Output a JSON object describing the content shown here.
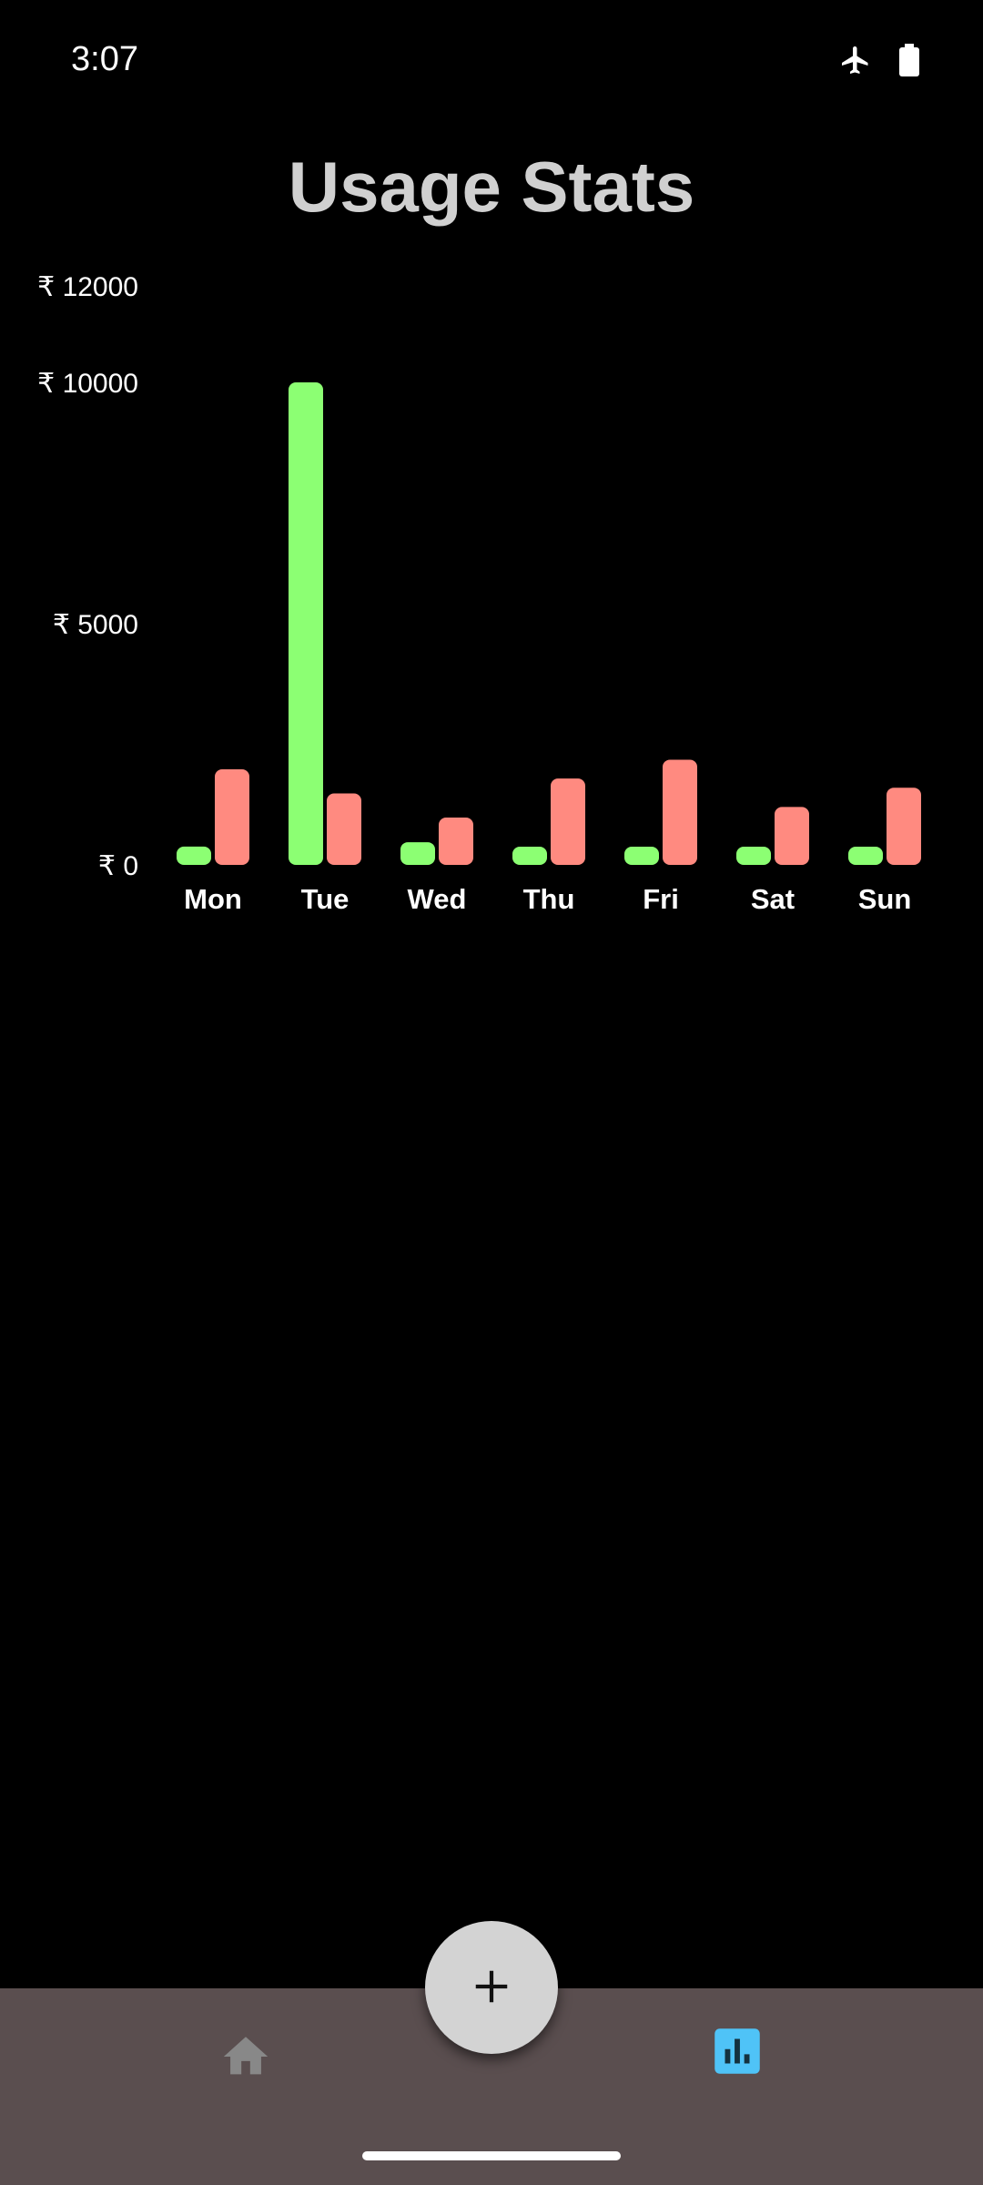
{
  "status_bar": {
    "time": "3:07",
    "icons": [
      "airplane-icon",
      "battery-icon"
    ]
  },
  "page": {
    "title": "Usage Stats"
  },
  "chart_data": {
    "type": "bar",
    "title": "",
    "xlabel": "",
    "ylabel": "",
    "categories": [
      "Mon",
      "Tue",
      "Wed",
      "Thu",
      "Fri",
      "Sat",
      "Sun"
    ],
    "series": [
      {
        "values": [
          380,
          10000,
          470,
          360,
          360,
          360,
          360
        ],
        "color": "#8cff73"
      },
      {
        "values": [
          1980,
          1480,
          980,
          1790,
          2180,
          1200,
          1600
        ],
        "color": "#ff8a80"
      }
    ],
    "y_ticks": [
      {
        "value": 0,
        "label": "₹ 0"
      },
      {
        "value": 5000,
        "label": "₹ 5000"
      },
      {
        "value": 10000,
        "label": "₹ 10000"
      },
      {
        "value": 12000,
        "label": "₹ 12000"
      }
    ],
    "ylim": [
      0,
      12000
    ],
    "grid": false,
    "legend": "none"
  },
  "bottom_nav": {
    "items": [
      {
        "icon": "home-icon",
        "active": false,
        "color": "#888888"
      },
      {
        "icon": "bar-chart-icon",
        "active": true,
        "color": "#4fc3f7"
      }
    ]
  },
  "fab": {
    "icon": "plus-icon",
    "color": "#d3d3d3"
  }
}
